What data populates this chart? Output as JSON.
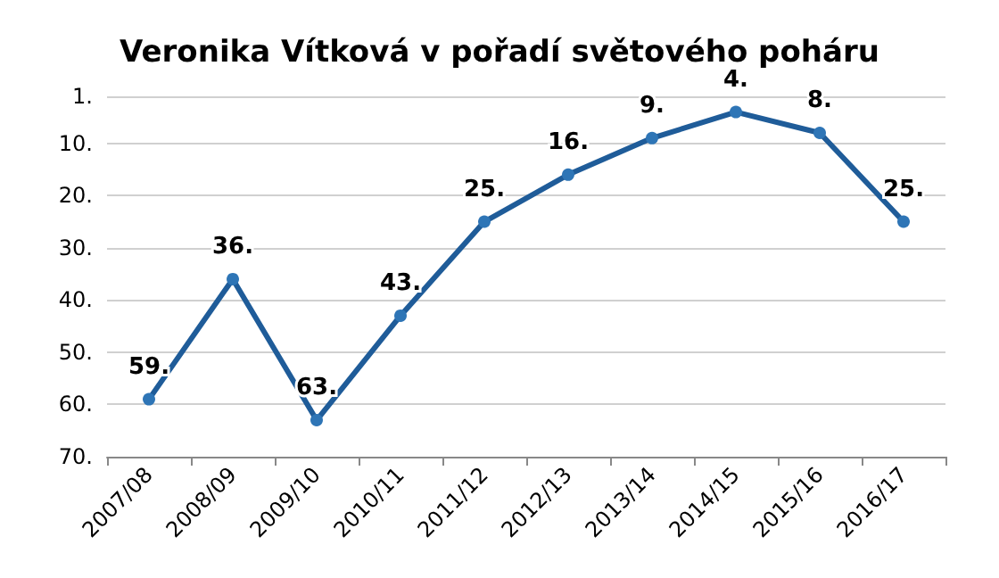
{
  "chart_data": {
    "type": "line",
    "title": "Veronika Vítková v pořadí světového poháru",
    "categories": [
      "2007/08",
      "2008/09",
      "2009/10",
      "2010/11",
      "2011/12",
      "2012/13",
      "2013/14",
      "2014/15",
      "2015/16",
      "2016/17"
    ],
    "series": [
      {
        "color": "#1f5c99",
        "values": [
          59,
          36,
          63,
          43,
          25,
          16,
          9,
          4,
          8,
          25
        ],
        "value_labels": [
          "59.",
          "36.",
          "63.",
          "43.",
          "25.",
          "16.",
          "9.",
          "4.",
          "8.",
          "25."
        ]
      }
    ],
    "ylim": [
      70,
      1
    ],
    "yticks": [
      {
        "value": 1,
        "label": "1."
      },
      {
        "value": 10,
        "label": "10."
      },
      {
        "value": 20,
        "label": "20."
      },
      {
        "value": 30,
        "label": "30."
      },
      {
        "value": 40,
        "label": "40."
      },
      {
        "value": 50,
        "label": "50."
      },
      {
        "value": 60,
        "label": "60."
      },
      {
        "value": 70,
        "label": "70."
      }
    ],
    "grid": "y",
    "marker": "circle",
    "line_style": "solid"
  }
}
